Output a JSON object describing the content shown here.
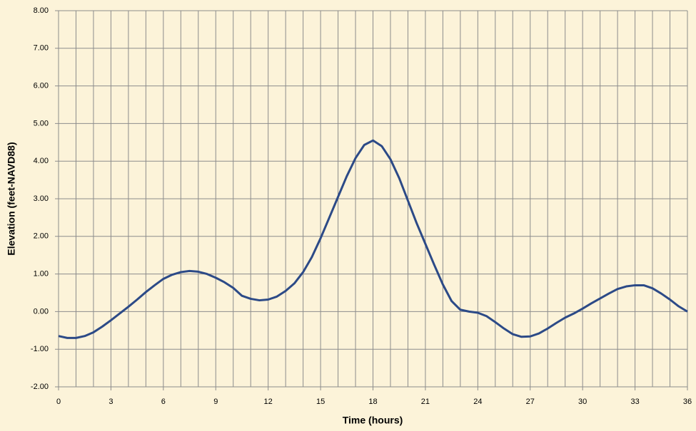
{
  "chart_data": {
    "type": "line",
    "x_label": "Time (hours)",
    "y_label": "Elevation (feet-NAVD88)",
    "x": [
      0,
      0.5,
      1,
      1.5,
      2,
      2.5,
      3,
      3.5,
      4,
      4.5,
      5,
      5.5,
      6,
      6.5,
      7,
      7.5,
      8,
      8.5,
      9,
      9.5,
      10,
      10.5,
      11,
      11.5,
      12,
      12.5,
      13,
      13.5,
      14,
      14.5,
      15,
      15.5,
      16,
      16.5,
      17,
      17.5,
      18,
      18.5,
      19,
      19.5,
      20,
      20.5,
      21,
      21.5,
      22,
      22.5,
      23,
      23.5,
      24,
      24.5,
      25,
      25.5,
      26,
      26.5,
      27,
      27.5,
      28,
      28.5,
      29,
      29.5,
      30,
      30.5,
      31,
      31.5,
      32,
      32.5,
      33,
      33.5,
      34,
      34.5,
      35,
      35.5,
      36
    ],
    "series": [
      {
        "color": "#2c4a87",
        "values": [
          -0.65,
          -0.7,
          -0.7,
          -0.65,
          -0.55,
          -0.4,
          -0.23,
          -0.05,
          0.13,
          0.32,
          0.52,
          0.7,
          0.87,
          0.98,
          1.05,
          1.08,
          1.06,
          1.0,
          0.9,
          0.78,
          0.63,
          0.42,
          0.34,
          0.3,
          0.32,
          0.4,
          0.55,
          0.75,
          1.05,
          1.45,
          1.95,
          2.5,
          3.05,
          3.6,
          4.08,
          4.43,
          4.55,
          4.4,
          4.05,
          3.55,
          2.95,
          2.35,
          1.8,
          1.25,
          0.72,
          0.28,
          0.05,
          0.0,
          -0.03,
          -0.12,
          -0.28,
          -0.45,
          -0.6,
          -0.67,
          -0.66,
          -0.58,
          -0.45,
          -0.3,
          -0.16,
          -0.05,
          0.08,
          0.22,
          0.35,
          0.48,
          0.6,
          0.67,
          0.7,
          0.7,
          0.62,
          0.48,
          0.32,
          0.14,
          0.0
        ]
      }
    ],
    "xlim": [
      0,
      36
    ],
    "xticks": [
      0,
      3,
      6,
      9,
      12,
      15,
      18,
      21,
      24,
      27,
      30,
      33,
      36
    ],
    "xgrid": [
      0,
      1,
      2,
      3,
      4,
      5,
      6,
      7,
      8,
      9,
      10,
      11,
      12,
      13,
      14,
      15,
      16,
      17,
      18,
      19,
      20,
      21,
      22,
      23,
      24,
      25,
      26,
      27,
      28,
      29,
      30,
      31,
      32,
      33,
      34,
      35,
      36
    ],
    "ylim": [
      -2,
      8
    ],
    "yticks": [
      {
        "value": -2,
        "label": "-2.00"
      },
      {
        "value": -1,
        "label": "-1.00"
      },
      {
        "value": 0,
        "label": "0.00"
      },
      {
        "value": 1,
        "label": "1.00"
      },
      {
        "value": 2,
        "label": "2.00"
      },
      {
        "value": 3,
        "label": "3.00"
      },
      {
        "value": 4,
        "label": "4.00"
      },
      {
        "value": 5,
        "label": "5.00"
      },
      {
        "value": 6,
        "label": "6.00"
      },
      {
        "value": 7,
        "label": "7.00"
      },
      {
        "value": 8,
        "label": "8.00"
      }
    ],
    "grid": true
  }
}
